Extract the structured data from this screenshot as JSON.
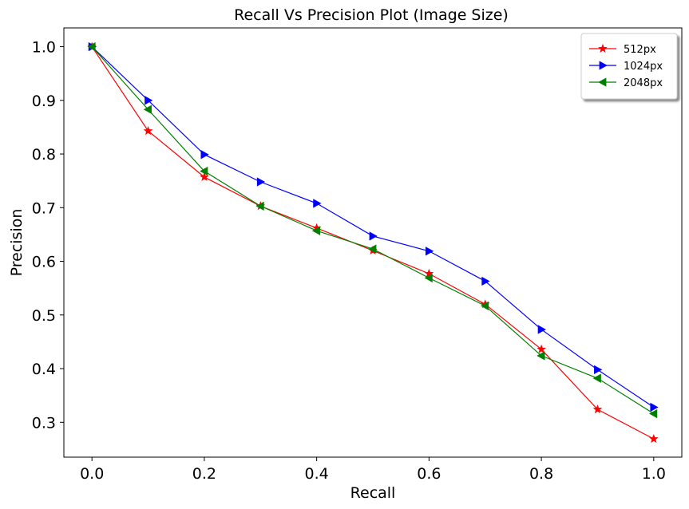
{
  "chart_data": {
    "type": "line",
    "title": "Recall Vs Precision Plot (Image Size)",
    "xlabel": "Recall",
    "ylabel": "Precision",
    "xlim": [
      -0.05,
      1.05
    ],
    "ylim": [
      0.235,
      1.035
    ],
    "xticks": [
      0.0,
      0.2,
      0.4,
      0.6,
      0.8,
      1.0
    ],
    "xtick_labels": [
      "0.0",
      "0.2",
      "0.4",
      "0.6",
      "0.8",
      "1.0"
    ],
    "yticks": [
      0.3,
      0.4,
      0.5,
      0.6,
      0.7,
      0.8,
      0.9,
      1.0
    ],
    "ytick_labels": [
      "0.3",
      "0.4",
      "0.5",
      "0.6",
      "0.7",
      "0.8",
      "0.9",
      "1.0"
    ],
    "grid": false,
    "legend_position": "top-right",
    "x": [
      0.0,
      0.1,
      0.2,
      0.3,
      0.4,
      0.5,
      0.6,
      0.7,
      0.8,
      0.9,
      1.0
    ],
    "series": [
      {
        "name": "512px",
        "color": "#ff0000",
        "marker": "star",
        "values": [
          1.0,
          0.843,
          0.757,
          0.703,
          0.662,
          0.62,
          0.577,
          0.52,
          0.436,
          0.324,
          0.269
        ]
      },
      {
        "name": "1024px",
        "color": "#0000ff",
        "marker": "triangle-right",
        "values": [
          1.0,
          0.9,
          0.799,
          0.748,
          0.708,
          0.647,
          0.619,
          0.563,
          0.473,
          0.398,
          0.328
        ]
      },
      {
        "name": "2048px",
        "color": "#008000",
        "marker": "triangle-left",
        "values": [
          1.0,
          0.883,
          0.768,
          0.703,
          0.657,
          0.623,
          0.569,
          0.517,
          0.424,
          0.382,
          0.316
        ]
      }
    ]
  }
}
